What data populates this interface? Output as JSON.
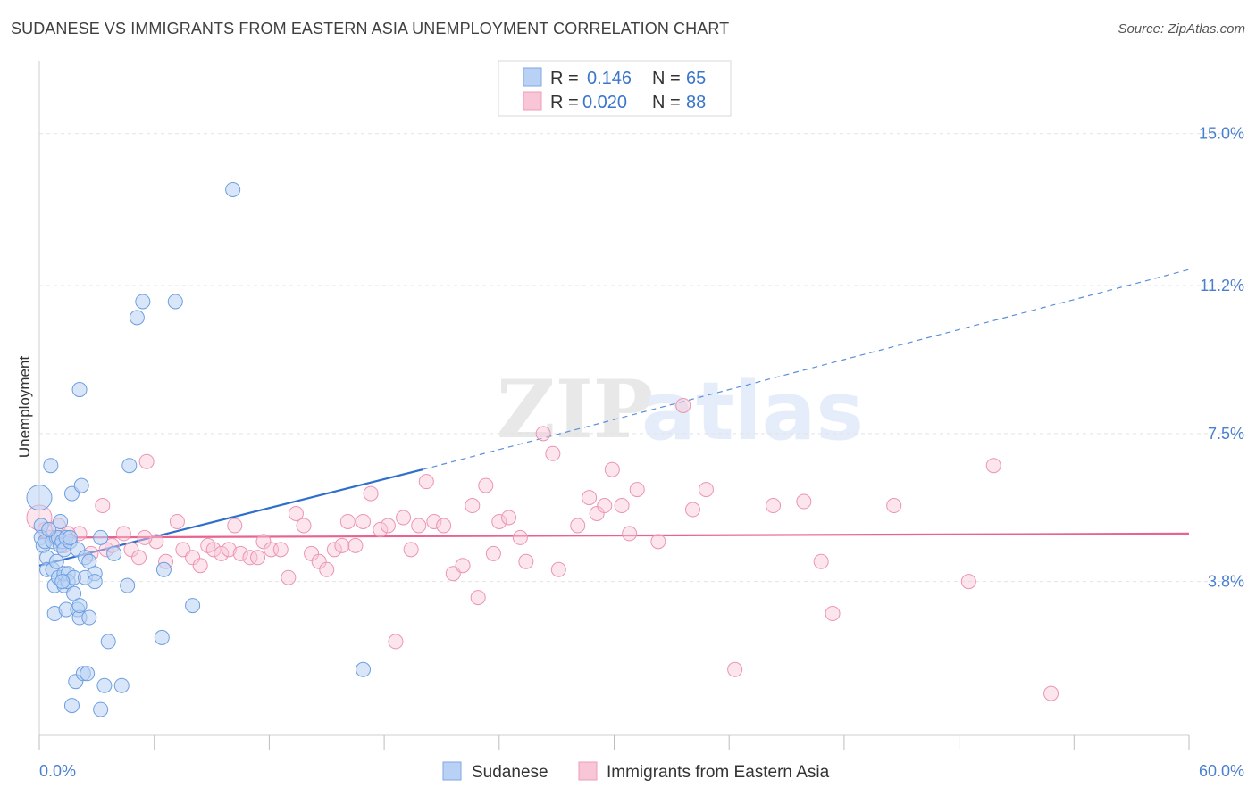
{
  "title": "SUDANESE VS IMMIGRANTS FROM EASTERN ASIA UNEMPLOYMENT CORRELATION CHART",
  "source": "Source: ZipAtlas.com",
  "watermark": {
    "zip": "ZIP",
    "atlas": "atlas"
  },
  "legend_top": {
    "r_label": "R =",
    "n_label": "N =",
    "rows": [
      {
        "r": "0.146",
        "n": "65"
      },
      {
        "r": "0.020",
        "n": "88"
      }
    ]
  },
  "chart_data": {
    "type": "scatter",
    "title": "SUDANESE VS IMMIGRANTS FROM EASTERN ASIA UNEMPLOYMENT CORRELATION CHART",
    "xlabel": "",
    "ylabel": "Unemployment",
    "xlim": [
      0,
      60
    ],
    "ylim": [
      0,
      16.6
    ],
    "x_tick_labels": [
      "0.0%",
      "60.0%"
    ],
    "y_ticks": [
      3.8,
      7.5,
      11.2,
      15.0
    ],
    "y_tick_labels": [
      "3.8%",
      "7.5%",
      "11.2%",
      "15.0%"
    ],
    "grid": true,
    "legend": "top-center",
    "colors": {
      "Sudanese": "#6c9fe0",
      "Immigrants from Eastern Asia": "#f09ab8"
    },
    "series": [
      {
        "name": "Sudanese",
        "r": 0.146,
        "n": 65,
        "trend": {
          "x": [
            0,
            20
          ],
          "y": [
            4.2,
            6.6
          ],
          "extended_to": {
            "x": 60,
            "y": 11.6
          }
        },
        "points": [
          [
            0.0,
            5.9
          ],
          [
            0.1,
            5.2
          ],
          [
            0.1,
            4.9
          ],
          [
            0.2,
            4.7
          ],
          [
            0.3,
            4.8
          ],
          [
            0.4,
            4.4
          ],
          [
            0.4,
            4.1
          ],
          [
            0.6,
            6.7
          ],
          [
            0.7,
            4.8
          ],
          [
            0.7,
            4.1
          ],
          [
            0.8,
            3.7
          ],
          [
            0.8,
            3.0
          ],
          [
            0.9,
            4.3
          ],
          [
            0.9,
            4.9
          ],
          [
            1.0,
            3.9
          ],
          [
            1.0,
            4.9
          ],
          [
            1.1,
            4.7
          ],
          [
            1.1,
            5.3
          ],
          [
            1.2,
            4.8
          ],
          [
            1.3,
            3.7
          ],
          [
            1.3,
            4.6
          ],
          [
            1.3,
            4.0
          ],
          [
            1.4,
            3.1
          ],
          [
            1.4,
            4.9
          ],
          [
            1.5,
            4.0
          ],
          [
            1.5,
            3.8
          ],
          [
            1.6,
            4.8
          ],
          [
            1.6,
            4.9
          ],
          [
            1.7,
            0.7
          ],
          [
            1.7,
            6.0
          ],
          [
            1.8,
            3.5
          ],
          [
            1.8,
            3.9
          ],
          [
            1.9,
            1.3
          ],
          [
            2.0,
            3.1
          ],
          [
            2.0,
            4.6
          ],
          [
            2.1,
            2.9
          ],
          [
            2.1,
            8.6
          ],
          [
            2.1,
            3.2
          ],
          [
            2.2,
            6.2
          ],
          [
            2.3,
            1.5
          ],
          [
            2.4,
            3.9
          ],
          [
            2.4,
            4.4
          ],
          [
            2.5,
            1.5
          ],
          [
            2.6,
            2.9
          ],
          [
            2.6,
            4.3
          ],
          [
            2.9,
            4.0
          ],
          [
            2.9,
            3.8
          ],
          [
            3.2,
            4.9
          ],
          [
            3.2,
            0.6
          ],
          [
            3.4,
            1.2
          ],
          [
            3.6,
            2.3
          ],
          [
            3.9,
            4.5
          ],
          [
            4.3,
            1.2
          ],
          [
            4.6,
            3.7
          ],
          [
            4.7,
            6.7
          ],
          [
            5.1,
            10.4
          ],
          [
            5.4,
            10.8
          ],
          [
            6.4,
            2.4
          ],
          [
            6.5,
            4.1
          ],
          [
            7.1,
            10.8
          ],
          [
            8.0,
            3.2
          ],
          [
            10.1,
            13.6
          ],
          [
            16.9,
            1.6
          ],
          [
            0.5,
            5.1
          ],
          [
            1.2,
            3.8
          ]
        ]
      },
      {
        "name": "Immigrants from Eastern Asia",
        "r": 0.02,
        "n": 88,
        "trend": {
          "x": [
            0,
            60
          ],
          "y": [
            4.9,
            5.0
          ]
        },
        "points": [
          [
            0.0,
            5.4
          ],
          [
            0.3,
            5.1
          ],
          [
            0.6,
            4.9
          ],
          [
            1.0,
            5.2
          ],
          [
            1.3,
            4.7
          ],
          [
            2.1,
            5.0
          ],
          [
            2.7,
            4.5
          ],
          [
            3.3,
            5.7
          ],
          [
            3.5,
            4.6
          ],
          [
            3.8,
            4.7
          ],
          [
            4.4,
            5.0
          ],
          [
            4.8,
            4.6
          ],
          [
            5.2,
            4.4
          ],
          [
            5.6,
            6.8
          ],
          [
            6.1,
            4.8
          ],
          [
            6.6,
            4.3
          ],
          [
            7.2,
            5.3
          ],
          [
            7.5,
            4.6
          ],
          [
            8.0,
            4.4
          ],
          [
            8.4,
            4.2
          ],
          [
            8.8,
            4.7
          ],
          [
            9.1,
            4.6
          ],
          [
            9.5,
            4.5
          ],
          [
            9.9,
            4.6
          ],
          [
            10.2,
            5.2
          ],
          [
            10.5,
            4.5
          ],
          [
            11.0,
            4.4
          ],
          [
            11.4,
            4.4
          ],
          [
            11.7,
            4.8
          ],
          [
            12.1,
            4.6
          ],
          [
            12.6,
            4.6
          ],
          [
            13.0,
            3.9
          ],
          [
            13.4,
            5.5
          ],
          [
            13.8,
            5.2
          ],
          [
            14.2,
            4.5
          ],
          [
            14.6,
            4.3
          ],
          [
            15.0,
            4.1
          ],
          [
            15.4,
            4.6
          ],
          [
            15.8,
            4.7
          ],
          [
            16.1,
            5.3
          ],
          [
            16.5,
            4.7
          ],
          [
            16.9,
            5.3
          ],
          [
            17.3,
            6.0
          ],
          [
            17.8,
            5.1
          ],
          [
            18.2,
            5.2
          ],
          [
            18.6,
            2.3
          ],
          [
            19.0,
            5.4
          ],
          [
            19.4,
            4.6
          ],
          [
            19.8,
            5.2
          ],
          [
            20.2,
            6.3
          ],
          [
            20.6,
            5.3
          ],
          [
            21.1,
            5.2
          ],
          [
            21.6,
            4.0
          ],
          [
            22.1,
            4.2
          ],
          [
            22.6,
            5.7
          ],
          [
            22.9,
            3.4
          ],
          [
            23.3,
            6.2
          ],
          [
            23.7,
            4.5
          ],
          [
            24.0,
            5.3
          ],
          [
            24.5,
            5.4
          ],
          [
            25.1,
            4.9
          ],
          [
            25.4,
            4.3
          ],
          [
            26.3,
            7.5
          ],
          [
            26.8,
            7.0
          ],
          [
            27.1,
            4.1
          ],
          [
            28.1,
            5.2
          ],
          [
            28.7,
            5.9
          ],
          [
            29.1,
            5.5
          ],
          [
            29.5,
            5.7
          ],
          [
            29.9,
            6.6
          ],
          [
            30.4,
            5.7
          ],
          [
            30.8,
            5.0
          ],
          [
            31.2,
            6.1
          ],
          [
            32.3,
            4.8
          ],
          [
            33.6,
            8.2
          ],
          [
            34.1,
            5.6
          ],
          [
            34.8,
            6.1
          ],
          [
            36.3,
            1.6
          ],
          [
            38.3,
            5.7
          ],
          [
            39.9,
            5.8
          ],
          [
            40.8,
            4.3
          ],
          [
            41.4,
            3.0
          ],
          [
            44.6,
            5.7
          ],
          [
            48.5,
            3.8
          ],
          [
            49.8,
            6.7
          ],
          [
            52.8,
            1.0
          ],
          [
            1.5,
            5.0
          ],
          [
            5.5,
            4.9
          ]
        ]
      }
    ]
  },
  "bottom_legend": [
    "Sudanese",
    "Immigrants from Eastern Asia"
  ]
}
